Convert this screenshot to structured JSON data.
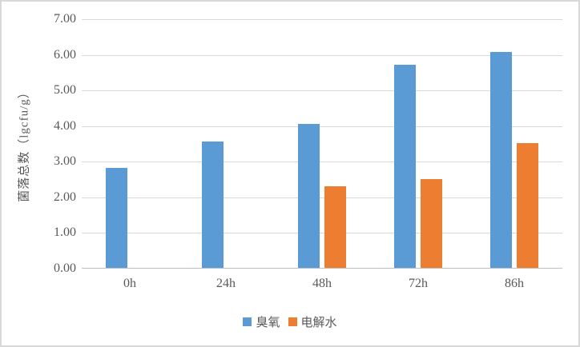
{
  "chart_data": {
    "type": "bar",
    "title": "",
    "xlabel": "",
    "ylabel": "菌落总数（lgcfu/g）",
    "categories": [
      "0h",
      "24h",
      "48h",
      "72h",
      "86h"
    ],
    "series": [
      {
        "name": "臭氧",
        "color": "#5B9BD5",
        "values": [
          2.8,
          3.55,
          4.05,
          5.7,
          6.05
        ]
      },
      {
        "name": "电解水",
        "color": "#ED7D31",
        "values": [
          null,
          null,
          2.3,
          2.5,
          3.5
        ]
      }
    ],
    "ylim": [
      0,
      7
    ],
    "ytick_step": 1,
    "yticks": [
      "0.00",
      "1.00",
      "2.00",
      "3.00",
      "4.00",
      "5.00",
      "6.00",
      "7.00"
    ],
    "grid": "horizontal",
    "legend_position": "bottom",
    "gridline_color": "#d9d9d9",
    "axis_line_color": "#bfbfbf",
    "text_color": "#595959",
    "background_color": "#ffffff",
    "border_color": "#d8d8d8"
  }
}
